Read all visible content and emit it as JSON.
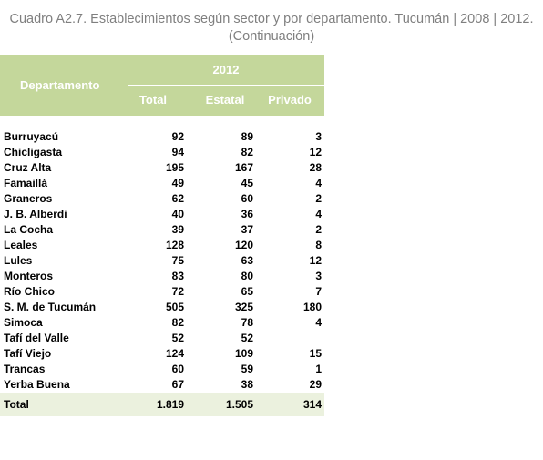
{
  "title": {
    "line1": "Cuadro A2.7. Establecimientos según sector y por departamento. Tucumán | 2008 | 2012.",
    "line2": "(Continuación)"
  },
  "table": {
    "header": {
      "department": "Departamento",
      "year": "2012",
      "columns": [
        "Total",
        "Estatal",
        "Privado"
      ]
    },
    "rows": [
      [
        "Burruyacú",
        "92",
        "89",
        "3"
      ],
      [
        "Chicligasta",
        "94",
        "82",
        "12"
      ],
      [
        "Cruz Alta",
        "195",
        "167",
        "28"
      ],
      [
        "Famaillá",
        "49",
        "45",
        "4"
      ],
      [
        "Graneros",
        "62",
        "60",
        "2"
      ],
      [
        "J. B. Alberdi",
        "40",
        "36",
        "4"
      ],
      [
        "La Cocha",
        "39",
        "37",
        "2"
      ],
      [
        "Leales",
        "128",
        "120",
        "8"
      ],
      [
        "Lules",
        "75",
        "63",
        "12"
      ],
      [
        "Monteros",
        "83",
        "80",
        "3"
      ],
      [
        "Río Chico",
        "72",
        "65",
        "7"
      ],
      [
        "S. M. de Tucumán",
        "505",
        "325",
        "180"
      ],
      [
        "Simoca",
        "82",
        "78",
        "4"
      ],
      [
        "Tafí del Valle",
        "52",
        "52",
        null
      ],
      [
        "Tafí Viejo",
        "124",
        "109",
        "15"
      ],
      [
        "Trancas",
        "60",
        "59",
        "1"
      ],
      [
        "Yerba Buena",
        "67",
        "38",
        "29"
      ]
    ],
    "total": [
      "Total",
      "1.819",
      "1.505",
      "314"
    ]
  }
}
